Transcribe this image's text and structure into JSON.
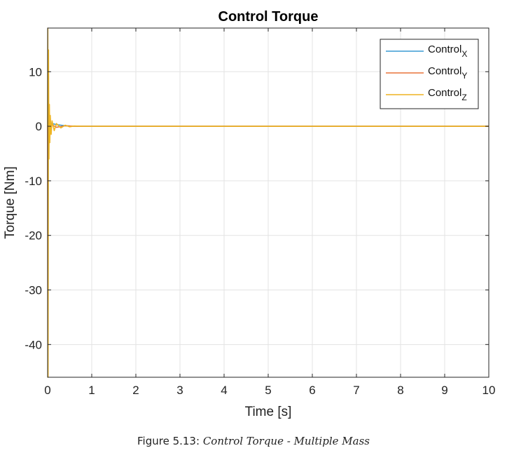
{
  "chart_data": {
    "type": "line",
    "title": "Control Torque",
    "xlabel": "Time [s]",
    "ylabel": "Torque [Nm]",
    "xlim": [
      0,
      10
    ],
    "ylim": [
      -46,
      18
    ],
    "xticks": [
      0,
      1,
      2,
      3,
      4,
      5,
      6,
      7,
      8,
      9,
      10
    ],
    "yticks": [
      10,
      0,
      -10,
      -20,
      -30,
      -40
    ],
    "grid": true,
    "legend_position": "top-right",
    "series": [
      {
        "name": "Control",
        "name_subscript": "X",
        "color": "#3a9bd3",
        "x": [
          0,
          0.01,
          0.02,
          0.04,
          0.06,
          0.08,
          0.1,
          0.15,
          0.2,
          0.3,
          0.4,
          0.5,
          0.6,
          0.8,
          1,
          2,
          4,
          6,
          8,
          10
        ],
        "y": [
          0,
          0.6,
          -0.5,
          0.7,
          0.5,
          0.6,
          0.5,
          0.4,
          0.3,
          0.2,
          0.1,
          0.05,
          0.02,
          0,
          0,
          0,
          0,
          0,
          0,
          0
        ]
      },
      {
        "name": "Control",
        "name_subscript": "Y",
        "color": "#e8733a",
        "x": [
          0,
          0.005,
          0.01,
          0.02,
          0.04,
          0.06,
          0.1,
          0.2,
          0.4,
          0.6,
          1,
          2,
          4,
          6,
          8,
          10
        ],
        "y": [
          0,
          -44,
          2,
          -3,
          0.5,
          -0.6,
          0.3,
          -0.2,
          0.1,
          0,
          0,
          0,
          0,
          0,
          0,
          0
        ]
      },
      {
        "name": "Control",
        "name_subscript": "Z",
        "color": "#eeb422",
        "x": [
          0,
          0.005,
          0.01,
          0.02,
          0.03,
          0.04,
          0.05,
          0.06,
          0.08,
          0.1,
          0.15,
          0.2,
          0.3,
          0.4,
          0.5,
          0.6,
          0.8,
          1,
          2,
          4,
          6,
          8,
          10
        ],
        "y": [
          0,
          18,
          -46,
          14,
          -6,
          4,
          -3,
          2,
          -1.5,
          1,
          -0.8,
          0.5,
          -0.3,
          0.2,
          -0.1,
          0.05,
          0,
          0,
          0,
          0,
          0,
          0,
          0
        ]
      }
    ]
  },
  "caption": {
    "label": "Figure 5.13:",
    "text": "Control Torque - Multiple Mass"
  }
}
